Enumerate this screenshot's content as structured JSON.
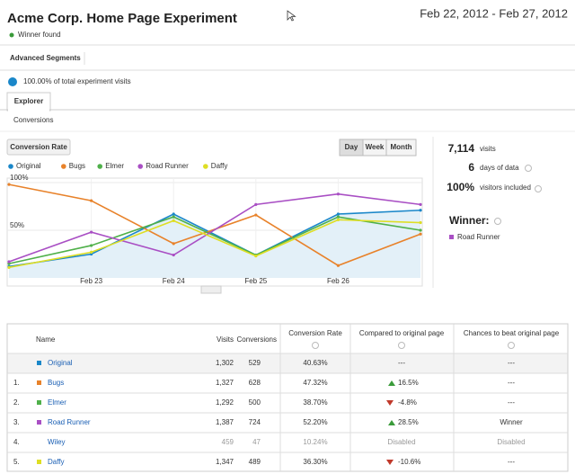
{
  "header": {
    "title": "Acme Corp. Home Page Experiment",
    "status": "Winner found",
    "date_range": "Feb 22, 2012 - Feb 27, 2012"
  },
  "segments_button": "Advanced Segments",
  "sample": "100.00% of total experiment visits",
  "tab": "Explorer",
  "subtab": "Conversions",
  "metric_button": "Conversion Rate",
  "periods": [
    "Day",
    "Week",
    "Month"
  ],
  "chart_data": {
    "type": "line",
    "categories": [
      null,
      "Feb 23",
      "Feb 24",
      "Feb 25",
      "Feb 26",
      null
    ],
    "series": [
      {
        "name": "Original",
        "color": "#1a87c9",
        "fill": "#e3f0f8",
        "values": [
          12,
          25,
          67,
          24,
          67,
          71
        ]
      },
      {
        "name": "Bugs",
        "color": "#e8822a",
        "values": [
          98,
          81,
          36,
          66,
          13,
          46
        ]
      },
      {
        "name": "Elmer",
        "color": "#4fb04a",
        "values": [
          15,
          34,
          64,
          24,
          64,
          50
        ]
      },
      {
        "name": "Road Runner",
        "color": "#a94fc4",
        "values": [
          17,
          48,
          24,
          77,
          88,
          77
        ]
      },
      {
        "name": "Daffy",
        "color": "#dede24",
        "values": [
          11,
          27,
          60,
          23,
          61,
          58
        ]
      }
    ],
    "ylim": [
      0,
      100
    ],
    "yticks": [
      {
        "value": 50,
        "label": "50%"
      },
      {
        "value": 100,
        "label": "100%"
      }
    ],
    "grid": true
  },
  "summary": {
    "visits": "7,114",
    "visits_label": "visits",
    "days": "6",
    "days_label": "days of data",
    "included": "100%",
    "included_label": "visitors included",
    "winner_label": "Winner:",
    "winner": "Road Runner",
    "winner_color": "#a94fc4"
  },
  "table": {
    "columns": [
      "Name",
      "Visits",
      "Conversions",
      "Conversion Rate",
      "Compared to original page",
      "Chances to beat original page"
    ],
    "rows": [
      {
        "name": "Original",
        "color": "#1a87c9",
        "visits": "1,302",
        "conversions": "529",
        "rate": "40.63%",
        "compared": "---",
        "chances": "---"
      },
      {
        "index": "1.",
        "name": "Bugs",
        "color": "#e8822a",
        "visits": "1,327",
        "conversions": "628",
        "rate": "47.32%",
        "compared": "16.5%",
        "chances": "---"
      },
      {
        "index": "2.",
        "name": "Elmer",
        "color": "#4fb04a",
        "visits": "1,292",
        "conversions": "500",
        "rate": "38.70%",
        "compared": "-4.8%",
        "chances": "---"
      },
      {
        "index": "3.",
        "name": "Road Runner",
        "color": "#a94fc4",
        "visits": "1,387",
        "conversions": "724",
        "rate": "52.20%",
        "compared": "28.5%",
        "chances": "Winner"
      },
      {
        "index": "4.",
        "name": "Wiley",
        "disabled": true,
        "visits": "459",
        "conversions": "47",
        "rate": "10.24%",
        "compared": "Disabled",
        "chances": "Disabled"
      },
      {
        "index": "5.",
        "name": "Daffy",
        "color": "#dede24",
        "visits": "1,347",
        "conversions": "489",
        "rate": "36.30%",
        "compared": "-10.6%",
        "chances": "---"
      }
    ]
  }
}
